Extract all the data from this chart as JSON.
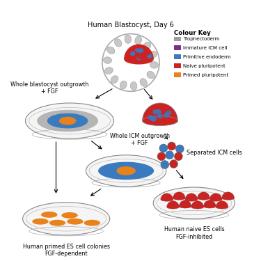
{
  "bg_color": "#ffffff",
  "colors": {
    "trophectoderm": "#aaaaaa",
    "immature_icm": "#7b2d8b",
    "primitive_endoderm": "#3a7abf",
    "naive_pluripotent": "#cc2222",
    "primed_pluripotent": "#e8821a"
  },
  "colour_key_title": "Colour Key",
  "colour_key_items": [
    [
      "Trophectoderm",
      "#9e9e9e"
    ],
    [
      "Immature ICM cell",
      "#7b2d8b"
    ],
    [
      "Primitive endoderm",
      "#3a7abf"
    ],
    [
      "Naive pluripotent",
      "#cc2222"
    ],
    [
      "Primed pluripotent",
      "#e8821a"
    ]
  ],
  "labels": {
    "blastocyst": "Human Blastocyst, Day 6",
    "whole_blastocyst": "Whole blastocyst outgrowth\n+ FGF",
    "whole_icm": "Whole ICM outgrowth\n+ FGF",
    "primed_es": "Human primed ES cell colonies\nFGF-dependent",
    "separated_icm": "Separated ICM cells",
    "naive_es": "Human naive ES cells\nFGF-inhibited"
  }
}
